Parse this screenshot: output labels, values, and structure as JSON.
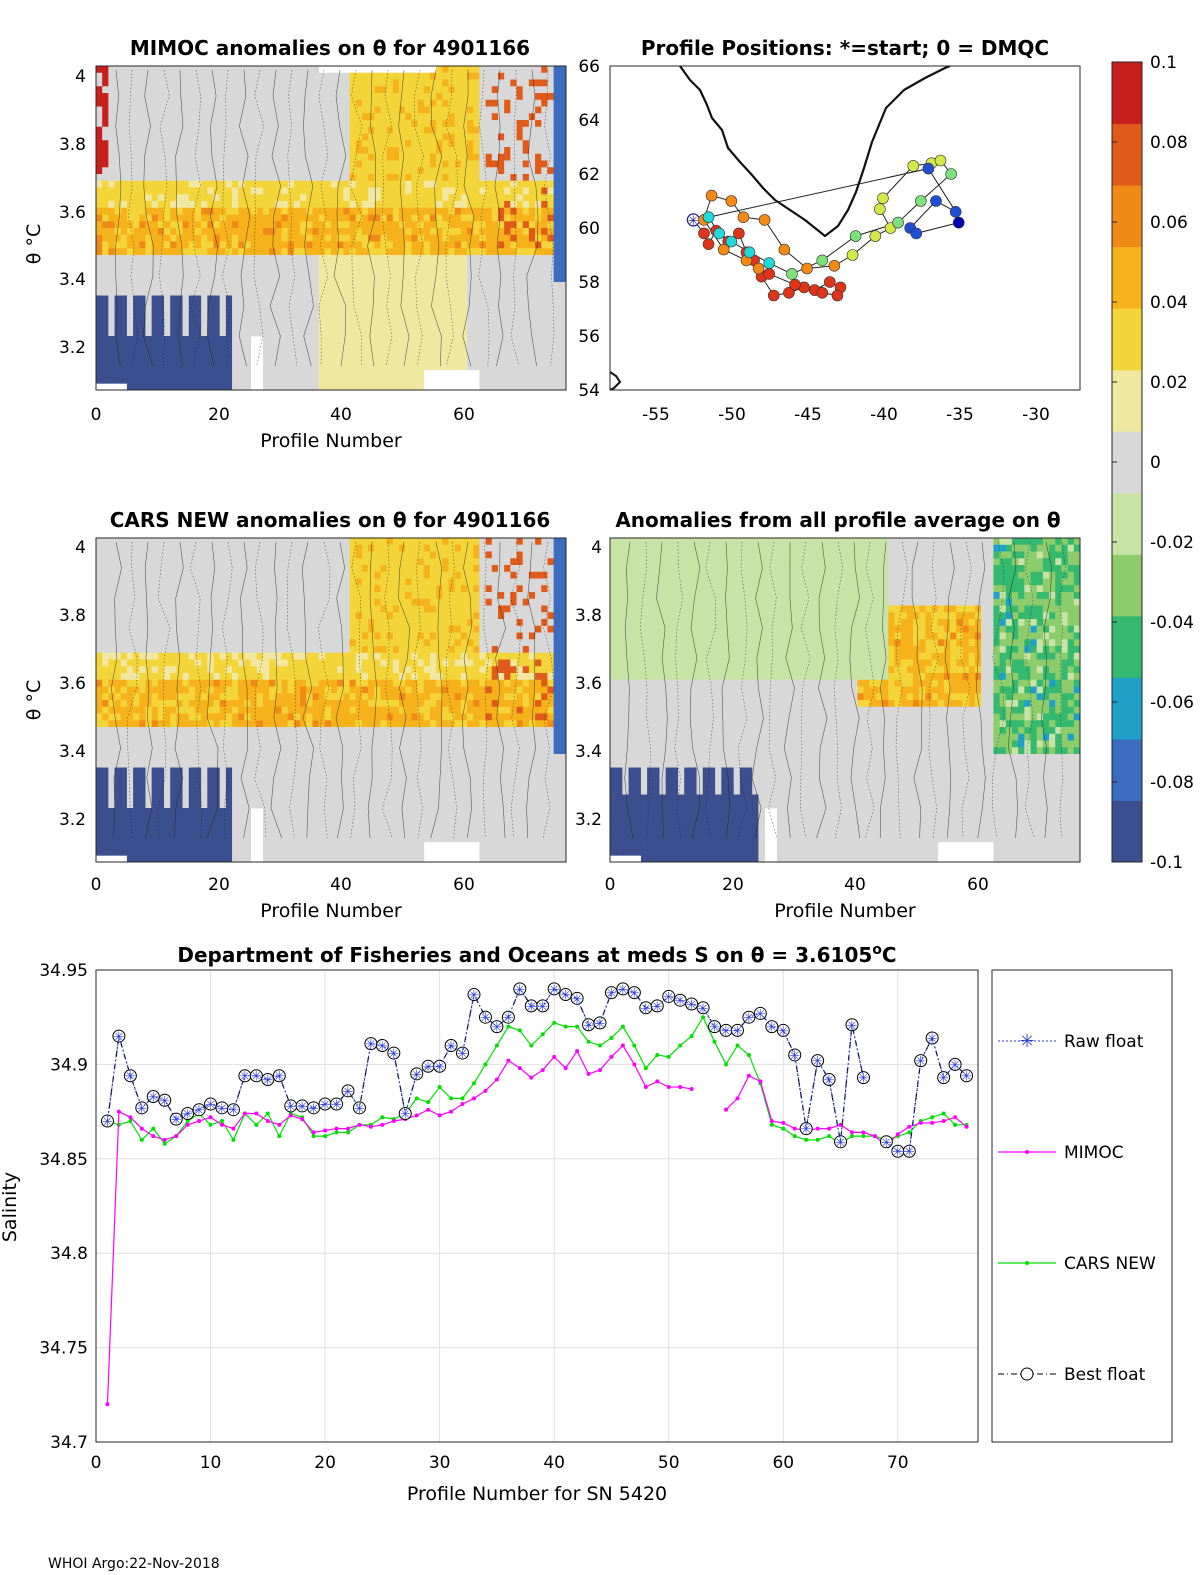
{
  "footer": "WHOI Argo:22-Nov-2018",
  "colorbar": {
    "ticks": [
      "0.1",
      "0.08",
      "0.06",
      "0.04",
      "0.02",
      "0",
      "-0.02",
      "-0.04",
      "-0.06",
      "-0.08",
      "-0.1"
    ],
    "colors": [
      "#3b4f8f",
      "#3b6cc0",
      "#1fa0c8",
      "#35b86f",
      "#8ccc6b",
      "#c8e3a6",
      "#d8d8d8",
      "#f0e8a0",
      "#f3d53a",
      "#f6b21b",
      "#f08a17",
      "#e05a1a",
      "#c81f1c"
    ]
  },
  "panels": {
    "mimoc": {
      "title": "MIMOC anomalies on θ  for 4901166",
      "xlabel": "Profile Number",
      "ylabel": "θ °C",
      "xticks": [
        "0",
        "20",
        "40",
        "60"
      ],
      "yticks": [
        "4",
        "3.8",
        "3.6",
        "3.4",
        "3.2"
      ]
    },
    "positions": {
      "title": "Profile Positions: *=start; 0 = DMQC",
      "xticks": [
        "-55",
        "-50",
        "-45",
        "-40",
        "-35",
        "-30"
      ],
      "yticks": [
        "66",
        "64",
        "62",
        "60",
        "58",
        "56",
        "54"
      ]
    },
    "cars": {
      "title": "CARS NEW anomalies on θ for 4901166",
      "xlabel": "Profile Number",
      "ylabel": "θ °C",
      "xticks": [
        "0",
        "20",
        "40",
        "60"
      ],
      "yticks": [
        "4",
        "3.8",
        "3.6",
        "3.4",
        "3.2"
      ]
    },
    "avg": {
      "title": "Anomalies from all profile average on θ",
      "xlabel": "Profile Number",
      "xticks": [
        "0",
        "20",
        "40",
        "60"
      ],
      "yticks": [
        "4",
        "3.8",
        "3.6",
        "3.4",
        "3.2"
      ]
    }
  },
  "chart_data": [
    {
      "type": "heatmap",
      "title": "MIMOC anomalies on θ for 4901166",
      "xlabel": "Profile Number",
      "ylabel": "θ °C",
      "xlim": [
        0,
        76
      ],
      "ylim": [
        3.07,
        4.03
      ]
    },
    {
      "type": "scatter",
      "title": "Profile Positions: *=start; 0 = DMQC",
      "xlim": [
        -58,
        -27
      ],
      "ylim": [
        54,
        66
      ],
      "x": [
        -52.5,
        -51.8,
        -51.5,
        -51,
        -50.2,
        -49.5,
        -49,
        -48.5,
        -48,
        -47.2,
        -46.2,
        -45.2,
        -44.5,
        -43.5,
        -42.8,
        -43,
        -44,
        -45.8,
        -47.5,
        -48.2,
        -49,
        -50.5,
        -51.8,
        -51.3,
        -50,
        -49.2,
        -47.8,
        -46.5,
        -45,
        -43.2,
        -42,
        -40.5,
        -39.5,
        -40.2,
        -40,
        -38,
        -36.8,
        -36.2,
        -35.5,
        -37.5,
        -39,
        -41.8,
        -44,
        -46,
        -47.5,
        -48.8,
        -50,
        -50.8,
        -51.5,
        -37,
        -35.2,
        -36.5,
        -38.2,
        -37.8,
        -35
      ],
      "y": [
        60.3,
        59.8,
        59.4,
        59.9,
        59.5,
        59.8,
        59.1,
        58.8,
        58.2,
        57.5,
        57.6,
        57.8,
        57.7,
        58.0,
        57.8,
        57.5,
        57.6,
        57.9,
        58.3,
        58.5,
        58.8,
        59.2,
        60.3,
        61.2,
        61.0,
        60.4,
        60.3,
        59.2,
        58.5,
        58.6,
        59.0,
        59.7,
        60.0,
        60.7,
        61.1,
        62.3,
        62.4,
        62.5,
        62.0,
        61.0,
        60.2,
        59.7,
        58.8,
        58.3,
        58.7,
        59.1,
        59.5,
        59.8,
        60.4,
        62.2,
        60.6,
        61.0,
        60.0,
        59.8,
        60.2
      ]
    },
    {
      "type": "heatmap",
      "title": "CARS NEW anomalies on θ for 4901166",
      "xlabel": "Profile Number",
      "ylabel": "θ °C",
      "xlim": [
        0,
        76
      ],
      "ylim": [
        3.07,
        4.03
      ]
    },
    {
      "type": "heatmap",
      "title": "Anomalies from all profile average on θ",
      "xlabel": "Profile Number",
      "xlim": [
        0,
        76
      ],
      "ylim": [
        3.07,
        4.03
      ]
    },
    {
      "type": "line",
      "title": "Department of Fisheries and Oceans at meds S on θ = 3.6105°C",
      "title_main": "Department of Fisheries and Oceans at meds S on θ = 3.6105",
      "title_sup": "o",
      "title_unit": "C",
      "xlabel": "Profile Number for SN 5420",
      "ylabel": "Salinity",
      "xlim": [
        0,
        77
      ],
      "ylim": [
        34.7,
        34.95
      ],
      "xticks": [
        "0",
        "10",
        "20",
        "30",
        "40",
        "50",
        "60",
        "70"
      ],
      "yticks": [
        "34.95",
        "34.9",
        "34.85",
        "34.8",
        "34.75",
        "34.7"
      ],
      "x": [
        1,
        2,
        3,
        4,
        5,
        6,
        7,
        8,
        9,
        10,
        11,
        12,
        13,
        14,
        15,
        16,
        17,
        18,
        19,
        20,
        21,
        22,
        23,
        24,
        25,
        26,
        27,
        28,
        29,
        30,
        31,
        32,
        33,
        34,
        35,
        36,
        37,
        38,
        39,
        40,
        41,
        42,
        43,
        44,
        45,
        46,
        47,
        48,
        49,
        50,
        51,
        52,
        53,
        54,
        55,
        56,
        57,
        58,
        59,
        60,
        61,
        62,
        63,
        64,
        65,
        66,
        67,
        68,
        69,
        70,
        71,
        72,
        73,
        74,
        75,
        76
      ],
      "series": [
        {
          "name": "Raw float",
          "color": "#2a3ad6",
          "values": [
            34.87,
            34.915,
            34.894,
            34.877,
            34.883,
            34.881,
            34.871,
            34.874,
            34.876,
            34.879,
            34.877,
            34.876,
            34.894,
            34.894,
            34.892,
            34.894,
            34.878,
            34.878,
            34.877,
            34.879,
            34.879,
            34.886,
            34.877,
            34.911,
            34.91,
            34.906,
            34.874,
            34.895,
            34.899,
            34.899,
            34.91,
            34.906,
            34.937,
            34.925,
            34.92,
            34.925,
            34.94,
            34.931,
            34.931,
            34.94,
            34.937,
            34.935,
            34.921,
            34.922,
            34.938,
            34.94,
            34.938,
            34.93,
            34.931,
            34.936,
            34.934,
            34.932,
            34.93,
            34.92,
            34.918,
            34.918,
            34.925,
            34.927,
            34.92,
            34.918,
            34.905,
            34.866,
            34.902,
            34.892,
            34.859,
            34.921,
            34.893,
            null,
            34.859,
            34.854,
            34.854,
            34.902,
            34.914,
            34.893,
            34.9,
            34.894
          ]
        },
        {
          "name": "MIMOC",
          "color": "#ff00ff",
          "values": [
            34.72,
            34.875,
            34.872,
            34.866,
            34.862,
            34.86,
            34.862,
            34.868,
            34.87,
            34.872,
            34.868,
            34.866,
            34.874,
            34.874,
            34.87,
            34.868,
            34.873,
            34.871,
            34.864,
            34.865,
            34.866,
            34.866,
            34.868,
            34.867,
            34.868,
            34.87,
            34.871,
            34.873,
            34.876,
            34.873,
            34.875,
            34.879,
            34.882,
            34.886,
            34.892,
            34.902,
            34.898,
            34.893,
            34.897,
            34.904,
            34.898,
            34.907,
            34.895,
            34.897,
            34.904,
            34.91,
            34.9,
            34.888,
            34.891,
            34.888,
            34.888,
            34.887,
            null,
            null,
            34.876,
            34.882,
            34.894,
            34.891,
            34.87,
            34.869,
            34.866,
            34.865,
            34.866,
            34.866,
            34.868,
            34.864,
            34.864,
            34.862,
            34.857,
            34.863,
            34.867,
            34.869,
            34.869,
            34.87,
            34.872,
            34.867
          ]
        },
        {
          "name": "CARS NEW",
          "color": "#00e000",
          "values": [
            34.87,
            34.868,
            34.87,
            34.86,
            34.866,
            34.858,
            34.862,
            34.87,
            34.874,
            34.868,
            34.87,
            34.86,
            34.874,
            34.868,
            34.874,
            34.862,
            34.874,
            34.872,
            34.862,
            34.862,
            34.864,
            34.864,
            34.868,
            34.868,
            34.872,
            34.871,
            34.874,
            34.882,
            34.88,
            34.888,
            34.882,
            34.882,
            34.89,
            34.9,
            34.91,
            34.92,
            34.918,
            34.91,
            34.916,
            34.922,
            34.92,
            34.92,
            34.912,
            34.91,
            34.914,
            34.92,
            34.91,
            34.898,
            34.905,
            34.904,
            34.91,
            34.915,
            34.925,
            34.912,
            34.9,
            34.91,
            34.905,
            34.89,
            34.868,
            34.866,
            34.862,
            34.86,
            34.86,
            34.862,
            34.858,
            34.862,
            34.862,
            34.862,
            34.86,
            34.862,
            34.864,
            34.87,
            34.872,
            34.874,
            34.868,
            34.868
          ]
        },
        {
          "name": "Best float",
          "color": "#000000",
          "values": [
            34.87,
            34.915,
            34.894,
            34.877,
            34.883,
            34.881,
            34.871,
            34.874,
            34.876,
            34.879,
            34.877,
            34.876,
            34.894,
            34.894,
            34.892,
            34.894,
            34.878,
            34.878,
            34.877,
            34.879,
            34.879,
            34.886,
            34.877,
            34.911,
            34.91,
            34.906,
            34.874,
            34.895,
            34.899,
            34.899,
            34.91,
            34.906,
            34.937,
            34.925,
            34.92,
            34.925,
            34.94,
            34.931,
            34.931,
            34.94,
            34.937,
            34.935,
            34.921,
            34.922,
            34.938,
            34.94,
            34.938,
            34.93,
            34.931,
            34.936,
            34.934,
            34.932,
            34.93,
            34.92,
            34.918,
            34.918,
            34.925,
            34.927,
            34.92,
            34.918,
            34.905,
            34.866,
            34.902,
            34.892,
            34.859,
            34.921,
            34.893,
            null,
            34.859,
            34.854,
            34.854,
            34.902,
            34.914,
            34.893,
            34.9,
            34.894
          ]
        }
      ]
    }
  ]
}
